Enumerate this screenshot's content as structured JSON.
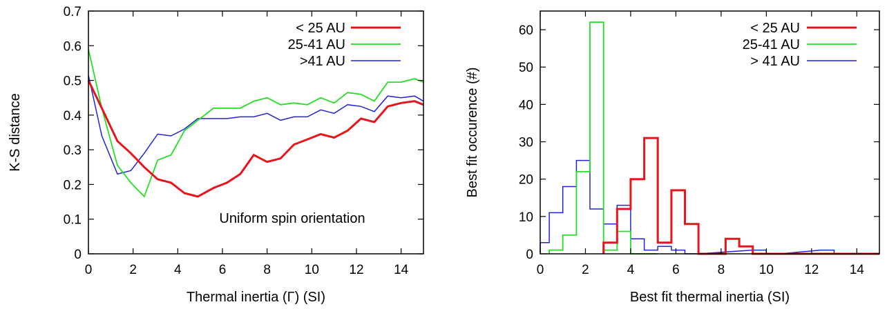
{
  "chart_data": [
    {
      "type": "line",
      "title": "",
      "xlabel": "Thermal inertia (Γ)  (SI)",
      "ylabel": "K-S distance",
      "xlim": [
        0,
        15
      ],
      "ylim": [
        0,
        0.7
      ],
      "xticks": [
        0,
        2,
        4,
        6,
        8,
        10,
        12,
        14
      ],
      "yticks": [
        0,
        0.1,
        0.2,
        0.3,
        0.4,
        0.5,
        0.6,
        0.7
      ],
      "grid": false,
      "legend_position": "top-right",
      "annotation": "Uniform spin orientation",
      "series": [
        {
          "name": "< 25 AU",
          "color": "#e8141c",
          "x": [
            0,
            0.6,
            1.3,
            1.9,
            2.5,
            3.1,
            3.7,
            4.3,
            4.9,
            5.6,
            6.2,
            6.8,
            7.4,
            8.0,
            8.6,
            9.2,
            9.8,
            10.4,
            11.0,
            11.6,
            12.2,
            12.8,
            13.4,
            14.0,
            14.6,
            15.0
          ],
          "y": [
            0.5,
            0.42,
            0.325,
            0.29,
            0.25,
            0.215,
            0.205,
            0.175,
            0.165,
            0.19,
            0.205,
            0.23,
            0.285,
            0.265,
            0.275,
            0.315,
            0.33,
            0.345,
            0.335,
            0.355,
            0.39,
            0.38,
            0.425,
            0.435,
            0.44,
            0.43
          ]
        },
        {
          "name": "25-41 AU",
          "color": "#22e022",
          "x": [
            0,
            0.6,
            1.3,
            1.9,
            2.5,
            3.1,
            3.7,
            4.3,
            4.9,
            5.6,
            6.2,
            6.8,
            7.4,
            8.0,
            8.6,
            9.2,
            9.8,
            10.4,
            11.0,
            11.6,
            12.2,
            12.8,
            13.4,
            14.0,
            14.6,
            15.0
          ],
          "y": [
            0.59,
            0.42,
            0.255,
            0.205,
            0.165,
            0.27,
            0.285,
            0.355,
            0.385,
            0.42,
            0.42,
            0.42,
            0.44,
            0.45,
            0.43,
            0.435,
            0.43,
            0.45,
            0.435,
            0.465,
            0.46,
            0.44,
            0.495,
            0.495,
            0.505,
            0.495
          ]
        },
        {
          "name": ">41 AU",
          "color": "#2222d8",
          "x": [
            0,
            0.6,
            1.3,
            1.9,
            2.5,
            3.1,
            3.7,
            4.3,
            4.9,
            5.6,
            6.2,
            6.8,
            7.4,
            8.0,
            8.6,
            9.2,
            9.8,
            10.4,
            11.0,
            11.6,
            12.2,
            12.8,
            13.4,
            14.0,
            14.6,
            15.0
          ],
          "y": [
            0.515,
            0.34,
            0.23,
            0.24,
            0.29,
            0.345,
            0.34,
            0.36,
            0.39,
            0.39,
            0.39,
            0.395,
            0.395,
            0.405,
            0.385,
            0.395,
            0.395,
            0.415,
            0.405,
            0.43,
            0.425,
            0.41,
            0.455,
            0.45,
            0.455,
            0.44
          ]
        }
      ]
    },
    {
      "type": "histogram",
      "title": "",
      "xlabel": "Best fit thermal inertia (SI)",
      "ylabel": "Best fit occurence (#)",
      "xlim": [
        0,
        15
      ],
      "ylim": [
        0,
        65
      ],
      "xticks": [
        0,
        2,
        4,
        6,
        8,
        10,
        12,
        14
      ],
      "yticks": [
        0,
        10,
        20,
        30,
        40,
        50,
        60
      ],
      "grid": false,
      "legend_position": "top-right",
      "bin_width": 0.6,
      "series": [
        {
          "name": "< 25 AU",
          "color": "#e8141c",
          "bin_starts": [
            2.8,
            3.4,
            4.0,
            4.6,
            5.2,
            5.8,
            6.4,
            7.0,
            7.6,
            8.2,
            8.8,
            9.4,
            10.0,
            15.0
          ],
          "counts": [
            3,
            12,
            20,
            31,
            3,
            17,
            8,
            0,
            0,
            4,
            2,
            0,
            0,
            0
          ]
        },
        {
          "name": "25-41 AU",
          "color": "#22e022",
          "bin_starts": [
            0.4,
            1.0,
            1.6,
            2.2,
            2.8,
            3.4,
            4.0,
            4.6
          ],
          "counts": [
            1,
            5,
            22,
            62,
            1,
            6,
            0,
            0
          ]
        },
        {
          "name": "> 41 AU",
          "color": "#2222d8",
          "bin_starts": [
            -0.2,
            0.4,
            1.0,
            1.6,
            2.2,
            2.8,
            3.4,
            4.0,
            4.6,
            5.2,
            5.8,
            6.4,
            9.4,
            10.0,
            12.4,
            13.0
          ],
          "counts": [
            3,
            11,
            18,
            25,
            12,
            8,
            13,
            4,
            1,
            2,
            1,
            0,
            1,
            0,
            1,
            0
          ]
        }
      ]
    }
  ]
}
